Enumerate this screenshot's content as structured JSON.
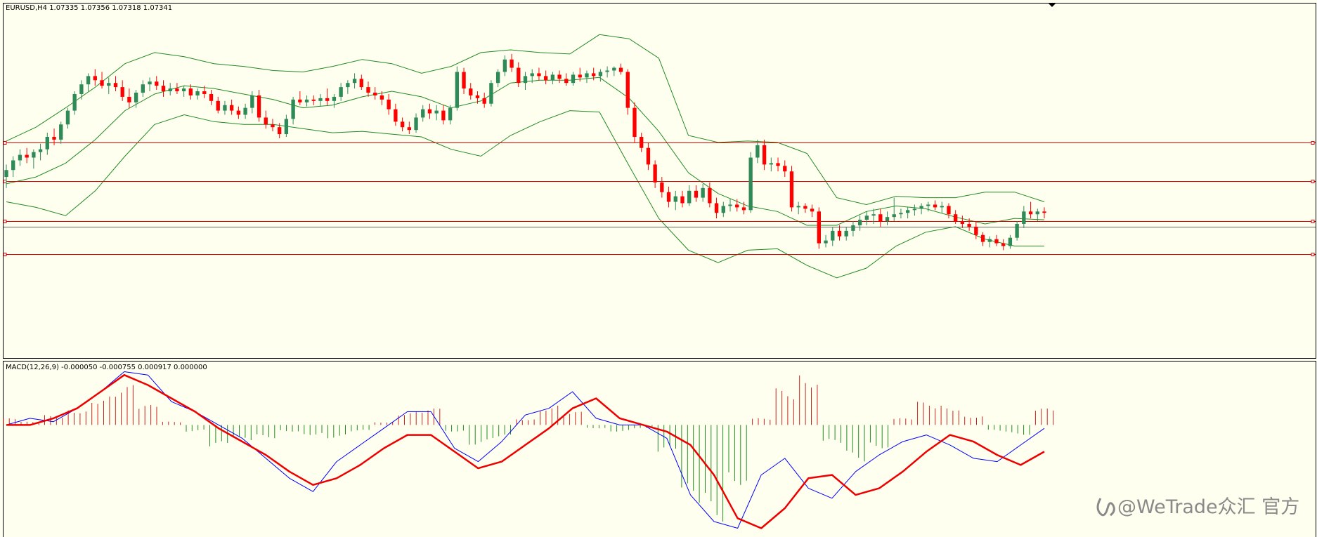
{
  "window": {
    "symbol_header": "EURUSD,H4  1.07335 1.07356 1.07318 1.07341",
    "macd_header": "MACD(12,26,9) -0.000050 -0.000755 0.000917 0.000000",
    "watermark": "@WeTrade众汇 官方"
  },
  "colors": {
    "background": "#fffff0",
    "bull": "#2e8b57",
    "bear": "#ff0000",
    "bands": "#228b22",
    "hline": "#dd0000",
    "bidline": "#606060",
    "macd_main": "#0000ff",
    "macd_signal": "#ee0000",
    "hist_pos": "#cc2222",
    "hist_neg": "#228b22"
  },
  "chart_data": [
    {
      "type": "candlestick",
      "symbol": "EURUSD",
      "timeframe": "H4",
      "price_range": [
        1.064,
        1.0895
      ],
      "ohlc": [
        [
          1.077,
          1.0779,
          1.0762,
          1.0775
        ],
        [
          1.0775,
          1.0785,
          1.077,
          1.0782
        ],
        [
          1.0782,
          1.079,
          1.0778,
          1.0786
        ],
        [
          1.0786,
          1.0791,
          1.078,
          1.0784
        ],
        [
          1.0784,
          1.079,
          1.0776,
          1.0788
        ],
        [
          1.0788,
          1.0794,
          1.0782,
          1.079
        ],
        [
          1.079,
          1.0802,
          1.0786,
          1.0799
        ],
        [
          1.0799,
          1.0805,
          1.0793,
          1.0797
        ],
        [
          1.0797,
          1.081,
          1.0794,
          1.0808
        ],
        [
          1.0808,
          1.082,
          1.0805,
          1.0818
        ],
        [
          1.0818,
          1.0832,
          1.0815,
          1.083
        ],
        [
          1.083,
          1.084,
          1.0826,
          1.0837
        ],
        [
          1.0837,
          1.0845,
          1.0832,
          1.0843
        ],
        [
          1.0843,
          1.0848,
          1.0836,
          1.084
        ],
        [
          1.084,
          1.0846,
          1.0834,
          1.0836
        ],
        [
          1.0836,
          1.0842,
          1.083,
          1.0838
        ],
        [
          1.0838,
          1.0843,
          1.0832,
          1.0835
        ],
        [
          1.0835,
          1.084,
          1.0825,
          1.0828
        ],
        [
          1.0828,
          1.0834,
          1.082,
          1.0824
        ],
        [
          1.0824,
          1.0833,
          1.082,
          1.0831
        ],
        [
          1.0831,
          1.084,
          1.0828,
          1.0837
        ],
        [
          1.0837,
          1.0842,
          1.0832,
          1.0839
        ],
        [
          1.0839,
          1.0843,
          1.0833,
          1.0836
        ],
        [
          1.0836,
          1.084,
          1.0828,
          1.0832
        ],
        [
          1.0832,
          1.0838,
          1.0829,
          1.0834
        ],
        [
          1.0834,
          1.0838,
          1.083,
          1.0832
        ],
        [
          1.0832,
          1.0836,
          1.0828,
          1.0834
        ],
        [
          1.0834,
          1.0837,
          1.0826,
          1.0829
        ],
        [
          1.0829,
          1.0834,
          1.0826,
          1.0832
        ],
        [
          1.0832,
          1.0836,
          1.0827,
          1.083
        ],
        [
          1.083,
          1.0833,
          1.0822,
          1.0825
        ],
        [
          1.0825,
          1.0828,
          1.0816,
          1.0818
        ],
        [
          1.0818,
          1.0825,
          1.0815,
          1.0822
        ],
        [
          1.0822,
          1.0826,
          1.0815,
          1.0818
        ],
        [
          1.0818,
          1.0821,
          1.0812,
          1.0815
        ],
        [
          1.0815,
          1.0823,
          1.0812,
          1.082
        ],
        [
          1.082,
          1.0832,
          1.0816,
          1.0829
        ],
        [
          1.0829,
          1.0833,
          1.081,
          1.0813
        ],
        [
          1.0813,
          1.0818,
          1.0805,
          1.0808
        ],
        [
          1.0808,
          1.0812,
          1.0803,
          1.0806
        ],
        [
          1.0806,
          1.0809,
          1.0798,
          1.0801
        ],
        [
          1.0801,
          1.0815,
          1.0799,
          1.0812
        ],
        [
          1.0812,
          1.0828,
          1.0808,
          1.0826
        ],
        [
          1.0826,
          1.0832,
          1.0822,
          1.0824
        ],
        [
          1.0824,
          1.0829,
          1.0821,
          1.0826
        ],
        [
          1.0826,
          1.0829,
          1.0822,
          1.0825
        ],
        [
          1.0825,
          1.083,
          1.0821,
          1.0827
        ],
        [
          1.0827,
          1.0834,
          1.0822,
          1.0825
        ],
        [
          1.0825,
          1.083,
          1.082,
          1.0828
        ],
        [
          1.0828,
          1.0838,
          1.0825,
          1.0835
        ],
        [
          1.0835,
          1.084,
          1.083,
          1.0838
        ],
        [
          1.0838,
          1.0845,
          1.0834,
          1.0841
        ],
        [
          1.0841,
          1.0844,
          1.0833,
          1.0835
        ],
        [
          1.0835,
          1.0839,
          1.0828,
          1.0831
        ],
        [
          1.0831,
          1.0835,
          1.0826,
          1.0829
        ],
        [
          1.0829,
          1.0832,
          1.0822,
          1.0826
        ],
        [
          1.0826,
          1.083,
          1.0815,
          1.0819
        ],
        [
          1.0819,
          1.0823,
          1.0807,
          1.081
        ],
        [
          1.081,
          1.0813,
          1.0803,
          1.0806
        ],
        [
          1.0806,
          1.081,
          1.0801,
          1.0804
        ],
        [
          1.0804,
          1.0816,
          1.0802,
          1.0813
        ],
        [
          1.0813,
          1.0822,
          1.081,
          1.0819
        ],
        [
          1.0819,
          1.0823,
          1.0812,
          1.0816
        ],
        [
          1.0816,
          1.0822,
          1.0811,
          1.0818
        ],
        [
          1.0818,
          1.0822,
          1.0808,
          1.0811
        ],
        [
          1.0811,
          1.0822,
          1.0808,
          1.082
        ],
        [
          1.082,
          1.085,
          1.0818,
          1.0846
        ],
        [
          1.0846,
          1.0849,
          1.083,
          1.0834
        ],
        [
          1.0834,
          1.0838,
          1.0826,
          1.0829
        ],
        [
          1.0829,
          1.0832,
          1.0823,
          1.0827
        ],
        [
          1.0827,
          1.0831,
          1.082,
          1.0823
        ],
        [
          1.0823,
          1.084,
          1.0821,
          1.0838
        ],
        [
          1.0838,
          1.0848,
          1.0835,
          1.0846
        ],
        [
          1.0846,
          1.0858,
          1.0843,
          1.0855
        ],
        [
          1.0855,
          1.0859,
          1.0846,
          1.0849
        ],
        [
          1.0849,
          1.0853,
          1.0835,
          1.0838
        ],
        [
          1.0838,
          1.0846,
          1.0833,
          1.0843
        ],
        [
          1.0843,
          1.0848,
          1.0838,
          1.0845
        ],
        [
          1.0845,
          1.0849,
          1.084,
          1.0843
        ],
        [
          1.0843,
          1.0847,
          1.0837,
          1.084
        ],
        [
          1.084,
          1.0846,
          1.0837,
          1.0844
        ],
        [
          1.0844,
          1.0847,
          1.0838,
          1.0841
        ],
        [
          1.0841,
          1.0845,
          1.0836,
          1.0838
        ],
        [
          1.0838,
          1.0846,
          1.0836,
          1.0844
        ],
        [
          1.0844,
          1.0849,
          1.0839,
          1.0842
        ],
        [
          1.0842,
          1.0847,
          1.0838,
          1.0845
        ],
        [
          1.0845,
          1.0849,
          1.084,
          1.0843
        ],
        [
          1.0843,
          1.0848,
          1.0839,
          1.0846
        ],
        [
          1.0846,
          1.085,
          1.0842,
          1.0847
        ],
        [
          1.0847,
          1.085,
          1.0843,
          1.0849
        ],
        [
          1.0849,
          1.0852,
          1.0844,
          1.0846
        ],
        [
          1.0846,
          1.0848,
          1.0815,
          1.082
        ],
        [
          1.082,
          1.0824,
          1.0795,
          1.0799
        ],
        [
          1.0799,
          1.0802,
          1.0788,
          1.0791
        ],
        [
          1.0791,
          1.0795,
          1.0775,
          1.0779
        ],
        [
          1.0779,
          1.0782,
          1.0762,
          1.0766
        ],
        [
          1.0766,
          1.077,
          1.0755,
          1.0759
        ],
        [
          1.0759,
          1.0763,
          1.0748,
          1.0752
        ],
        [
          1.0752,
          1.076,
          1.0746,
          1.0756
        ],
        [
          1.0756,
          1.076,
          1.0748,
          1.0751
        ],
        [
          1.0751,
          1.0764,
          1.0749,
          1.076
        ],
        [
          1.076,
          1.0764,
          1.0752,
          1.0755
        ],
        [
          1.0755,
          1.0765,
          1.0752,
          1.0762
        ],
        [
          1.0762,
          1.0766,
          1.0748,
          1.0751
        ],
        [
          1.0751,
          1.0755,
          1.074,
          1.0744
        ],
        [
          1.0744,
          1.0752,
          1.0741,
          1.0749
        ],
        [
          1.0749,
          1.0754,
          1.0745,
          1.075
        ],
        [
          1.075,
          1.0754,
          1.0745,
          1.0748
        ],
        [
          1.0748,
          1.0752,
          1.0743,
          1.0746
        ],
        [
          1.0746,
          1.0788,
          1.0744,
          1.0784
        ],
        [
          1.0784,
          1.0797,
          1.078,
          1.0793
        ],
        [
          1.0793,
          1.0797,
          1.0775,
          1.0779
        ],
        [
          1.0779,
          1.0784,
          1.0774,
          1.078
        ],
        [
          1.078,
          1.0784,
          1.0774,
          1.0778
        ],
        [
          1.0778,
          1.0782,
          1.077,
          1.0774
        ],
        [
          1.0774,
          1.0778,
          1.0745,
          1.0748
        ],
        [
          1.0748,
          1.0752,
          1.0743,
          1.0749
        ],
        [
          1.0749,
          1.0751,
          1.0744,
          1.0747
        ],
        [
          1.0747,
          1.075,
          1.0741,
          1.0745
        ],
        [
          1.0745,
          1.0748,
          1.0718,
          1.0722
        ],
        [
          1.0722,
          1.0728,
          1.0719,
          1.0724
        ],
        [
          1.0724,
          1.0734,
          1.072,
          1.0731
        ],
        [
          1.0731,
          1.0735,
          1.0724,
          1.0727
        ],
        [
          1.0727,
          1.0734,
          1.0724,
          1.0731
        ],
        [
          1.0731,
          1.0738,
          1.0727,
          1.0735
        ],
        [
          1.0735,
          1.0742,
          1.0731,
          1.0739
        ],
        [
          1.0739,
          1.0745,
          1.0735,
          1.0742
        ],
        [
          1.0742,
          1.0747,
          1.0736,
          1.0743
        ],
        [
          1.0743,
          1.0747,
          1.0734,
          1.0738
        ],
        [
          1.0738,
          1.0745,
          1.0735,
          1.0741
        ],
        [
          1.0741,
          1.0755,
          1.0738,
          1.0743
        ],
        [
          1.0743,
          1.0747,
          1.074,
          1.0744
        ],
        [
          1.0744,
          1.0748,
          1.074,
          1.0746
        ],
        [
          1.0746,
          1.075,
          1.0742,
          1.0747
        ],
        [
          1.0747,
          1.0751,
          1.0743,
          1.0749
        ],
        [
          1.0749,
          1.0752,
          1.0745,
          1.075
        ],
        [
          1.075,
          1.0753,
          1.0746,
          1.0748
        ],
        [
          1.0748,
          1.0752,
          1.0744,
          1.0749
        ],
        [
          1.0749,
          1.0751,
          1.074,
          1.0743
        ],
        [
          1.0743,
          1.0746,
          1.0736,
          1.0738
        ],
        [
          1.0738,
          1.0742,
          1.0733,
          1.0736
        ],
        [
          1.0736,
          1.074,
          1.0731,
          1.0734
        ],
        [
          1.0734,
          1.0738,
          1.0725,
          1.0728
        ],
        [
          1.0728,
          1.073,
          1.072,
          1.0723
        ],
        [
          1.0723,
          1.0727,
          1.0719,
          1.0725
        ],
        [
          1.0725,
          1.0728,
          1.072,
          1.0722
        ],
        [
          1.0722,
          1.0725,
          1.0717,
          1.072
        ],
        [
          1.072,
          1.0728,
          1.0718,
          1.0726
        ],
        [
          1.0726,
          1.0738,
          1.0724,
          1.0736
        ],
        [
          1.0736,
          1.0749,
          1.0733,
          1.0745
        ],
        [
          1.0745,
          1.0752,
          1.074,
          1.0743
        ],
        [
          1.0743,
          1.0747,
          1.0738,
          1.0745
        ],
        [
          1.0745,
          1.0748,
          1.074,
          1.0744
        ]
      ],
      "bollinger_bands": {
        "upper": [
          1.0796,
          1.0806,
          1.082,
          1.0835,
          1.0852,
          1.086,
          1.0857,
          1.0852,
          1.085,
          1.0847,
          1.0846,
          1.085,
          1.0855,
          1.0852,
          1.0845,
          1.085,
          1.086,
          1.0862,
          1.086,
          1.0859,
          1.0873,
          1.087,
          1.0856,
          1.08,
          1.0795,
          1.0796,
          1.0795,
          1.0787,
          1.0755,
          1.075,
          1.0756,
          1.0755,
          1.0755,
          1.0759,
          1.0759,
          1.0752
        ],
        "middle": [
          1.0765,
          1.077,
          1.078,
          1.0797,
          1.0818,
          1.083,
          1.0836,
          1.0834,
          1.083,
          1.0826,
          1.082,
          1.0822,
          1.0828,
          1.0832,
          1.0828,
          1.082,
          1.0825,
          1.0838,
          1.084,
          1.084,
          1.0842,
          1.0827,
          1.0803,
          1.0773,
          1.0758,
          1.0749,
          1.0745,
          1.0735,
          1.0735,
          1.0745,
          1.0749,
          1.0747,
          1.0741,
          1.0736,
          1.074,
          1.0739
        ],
        "lower": [
          1.0752,
          1.0748,
          1.0742,
          1.076,
          1.0785,
          1.0808,
          1.0815,
          1.081,
          1.0808,
          1.0808,
          1.0805,
          1.0802,
          1.0803,
          1.0801,
          1.0799,
          1.079,
          1.0785,
          1.08,
          1.081,
          1.0818,
          1.0817,
          1.0778,
          1.074,
          1.0717,
          1.0708,
          1.0717,
          1.0718,
          1.0706,
          1.0697,
          1.0704,
          1.072,
          1.073,
          1.0734,
          1.0725,
          1.072,
          1.072
        ]
      },
      "bid_price": 1.07341,
      "horizontal_levels": [
        1.0795,
        1.0767,
        1.0738,
        1.0714
      ]
    },
    {
      "type": "macd",
      "params": [
        12,
        26,
        9
      ],
      "value_range": [
        -0.0033,
        0.0018
      ],
      "macd_main": [
        0.0,
        0.0002,
        0.0001,
        0.0005,
        0.001,
        0.0016,
        0.0015,
        0.0007,
        0.0004,
        0.0,
        -0.0004,
        -0.001,
        -0.0016,
        -0.002,
        -0.0011,
        -0.0006,
        -0.0001,
        0.0004,
        0.0004,
        -0.0007,
        -0.0011,
        -0.0005,
        0.0003,
        0.0005,
        0.001,
        0.0002,
        0.0,
        0.0,
        -0.0004,
        -0.0021,
        -0.0029,
        -0.0031,
        -0.0015,
        -0.001,
        -0.0019,
        -0.0022,
        -0.0014,
        -0.0009,
        -0.0005,
        -0.0003,
        -0.0006,
        -0.001,
        -0.0011,
        -0.0006,
        -0.0001
      ],
      "macd_signal": [
        0.0,
        0.0,
        0.0002,
        0.0005,
        0.001,
        0.0015,
        0.0012,
        0.0008,
        0.0004,
        -0.0001,
        -0.0005,
        -0.0009,
        -0.0014,
        -0.0018,
        -0.0016,
        -0.0012,
        -0.0007,
        -0.0003,
        -0.0003,
        -0.0008,
        -0.0013,
        -0.0011,
        -0.0006,
        -0.0001,
        0.0005,
        0.0008,
        0.0002,
        0.0,
        -0.0002,
        -0.0006,
        -0.0015,
        -0.0028,
        -0.0031,
        -0.0025,
        -0.0016,
        -0.0015,
        -0.0021,
        -0.0019,
        -0.0014,
        -0.0008,
        -0.0003,
        -0.0005,
        -0.0009,
        -0.0012,
        -0.0008
      ],
      "histogram": [
        0.0002,
        0.0001,
        0.0003,
        0.0005,
        0.0009,
        0.0012,
        0.0006,
        0.0001,
        -0.0002,
        -0.0007,
        -0.0005,
        -0.0004,
        -0.0002,
        -0.0003,
        -0.0004,
        -0.0002,
        0.0001,
        0.0004,
        0.0005,
        -0.0002,
        -0.0006,
        -0.0004,
        0.0002,
        0.0006,
        0.0004,
        -0.0001,
        -0.0002,
        -0.0001,
        -0.0009,
        -0.0025,
        -0.0029,
        -0.0018,
        0.0002,
        0.0011,
        0.0016,
        -0.0006,
        -0.0011,
        -0.0007,
        0.0002,
        0.0007,
        0.0006,
        0.0003,
        -0.0002,
        -0.0003,
        0.0005
      ]
    }
  ]
}
